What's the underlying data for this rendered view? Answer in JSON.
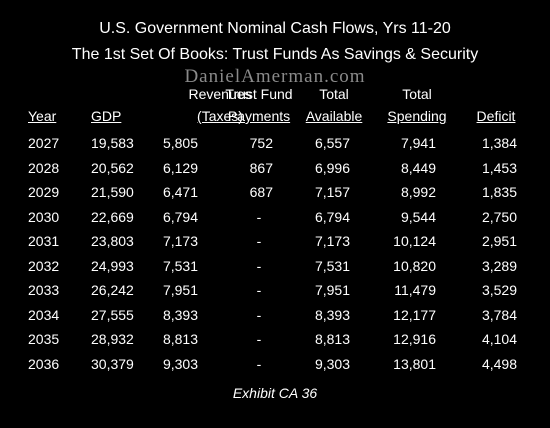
{
  "title_line1": "U.S. Government Nominal Cash Flows, Yrs 11-20",
  "title_line2": "The 1st Set Of Books: Trust Funds As Savings & Security",
  "watermark": "DanielAmerman.com",
  "table": {
    "columns": [
      {
        "key": "year",
        "top": "",
        "bottom": "Year"
      },
      {
        "key": "gdp",
        "top": "",
        "bottom": "GDP"
      },
      {
        "key": "revenues",
        "top": "Revenues",
        "bottom": "(Taxes)"
      },
      {
        "key": "trust_fund",
        "top": "Trust Fund",
        "bottom": "Payments"
      },
      {
        "key": "total_available",
        "top": "Total",
        "bottom": "Available"
      },
      {
        "key": "total_spending",
        "top": "Total",
        "bottom": "Spending"
      },
      {
        "key": "deficit",
        "top": "",
        "bottom": "Deficit"
      }
    ],
    "rows": [
      [
        "2027",
        "19,583",
        "5,805",
        "752",
        "6,557",
        "7,941",
        "1,384"
      ],
      [
        "2028",
        "20,562",
        "6,129",
        "867",
        "6,996",
        "8,449",
        "1,453"
      ],
      [
        "2029",
        "21,590",
        "6,471",
        "687",
        "7,157",
        "8,992",
        "1,835"
      ],
      [
        "2030",
        "22,669",
        "6,794",
        "-",
        "6,794",
        "9,544",
        "2,750"
      ],
      [
        "2031",
        "23,803",
        "7,173",
        "-",
        "7,173",
        "10,124",
        "2,951"
      ],
      [
        "2032",
        "24,993",
        "7,531",
        "-",
        "7,531",
        "10,820",
        "3,289"
      ],
      [
        "2033",
        "26,242",
        "7,951",
        "-",
        "7,951",
        "11,479",
        "3,529"
      ],
      [
        "2034",
        "27,555",
        "8,393",
        "-",
        "8,393",
        "12,177",
        "3,784"
      ],
      [
        "2035",
        "28,932",
        "8,813",
        "-",
        "8,813",
        "12,916",
        "4,104"
      ],
      [
        "2036",
        "30,379",
        "9,303",
        "-",
        "9,303",
        "13,801",
        "4,498"
      ]
    ]
  },
  "exhibit_label": "Exhibit CA 36"
}
